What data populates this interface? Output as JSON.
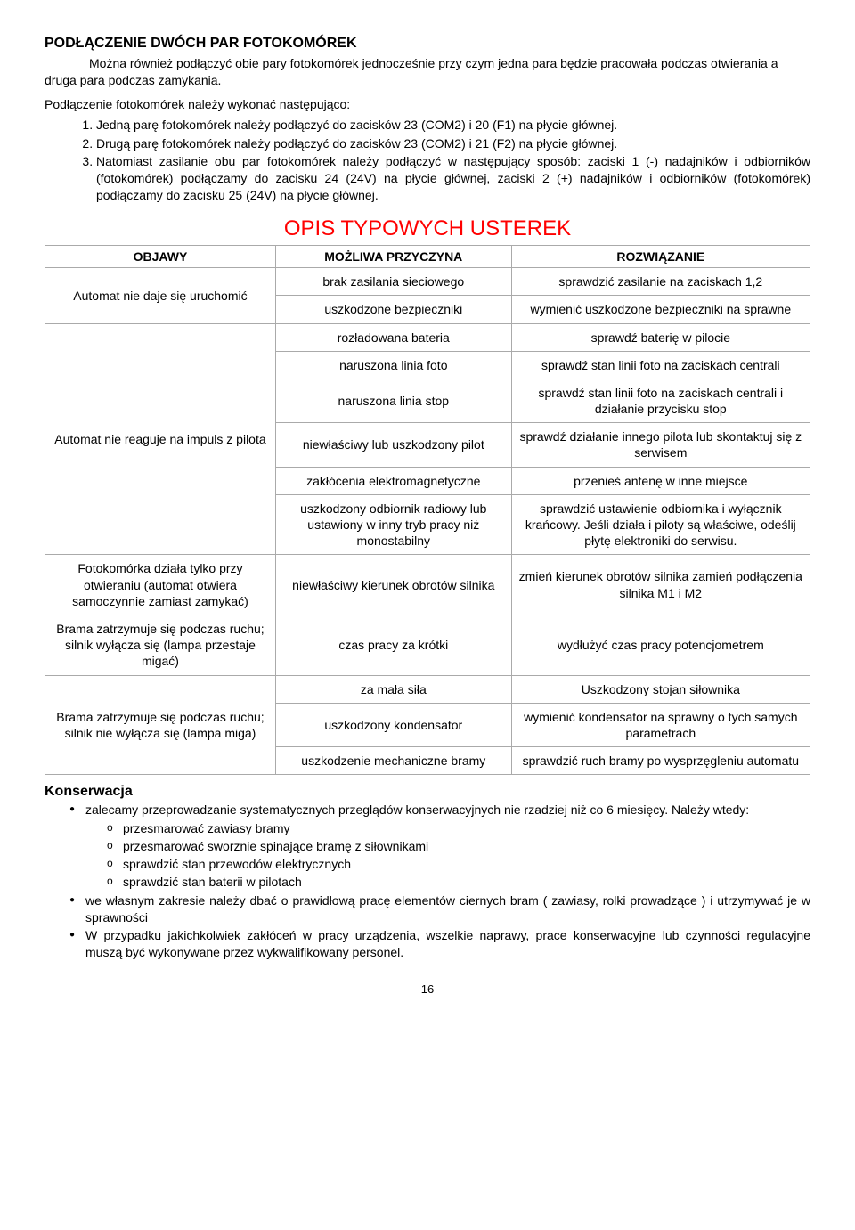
{
  "section1": {
    "heading": "PODŁĄCZENIE DWÓCH PAR FOTOKOMÓREK",
    "intro": "Można również podłączyć obie pary fotokomórek jednocześnie przy czym jedna para będzie pracowała podczas otwierania a druga para podczas zamykania.",
    "sub": "Podłączenie fotokomórek należy wykonać następująco:",
    "items": [
      "Jedną parę fotokomórek należy podłączyć do zacisków 23 (COM2) i 20 (F1) na płycie głównej.",
      "Drugą parę fotokomórek należy podłączyć do zacisków 23 (COM2) i 21 (F2) na płycie głównej.",
      "Natomiast zasilanie obu par fotokomórek należy podłączyć w następujący sposób: zaciski 1 (-) nadajników i odbiorników (fotokomórek) podłączamy do zacisku 24 (24V) na płycie głównej, zaciski 2 (+) nadajników i odbiorników (fotokomórek) podłączamy do zacisku 25 (24V) na płycie głównej."
    ]
  },
  "fault_table": {
    "title": "OPIS TYPOWYCH USTEREK",
    "headers": [
      "OBJAWY",
      "MOŻLIWA PRZYCZYNA",
      "ROZWIĄZANIE"
    ],
    "groups": [
      {
        "symptom": "Automat nie daje się uruchomić",
        "rows": [
          [
            "brak zasilania sieciowego",
            "sprawdzić zasilanie na zaciskach 1,2"
          ],
          [
            "uszkodzone bezpieczniki",
            "wymienić uszkodzone bezpieczniki na sprawne"
          ]
        ]
      },
      {
        "symptom": "Automat nie reaguje na impuls z pilota",
        "rows": [
          [
            "rozładowana bateria",
            "sprawdź baterię w pilocie"
          ],
          [
            "naruszona linia foto",
            "sprawdź stan linii foto na zaciskach centrali"
          ],
          [
            "naruszona linia stop",
            "sprawdź stan linii foto na zaciskach centrali i działanie przycisku stop"
          ],
          [
            "niewłaściwy lub uszkodzony pilot",
            "sprawdź działanie innego pilota lub skontaktuj się z serwisem"
          ],
          [
            "zakłócenia elektromagnetyczne",
            "przenieś antenę w inne miejsce"
          ],
          [
            "uszkodzony odbiornik radiowy lub ustawiony w inny tryb pracy niż monostabilny",
            "sprawdzić ustawienie odbiornika i wyłącznik krańcowy. Jeśli działa i piloty są właściwe, odeślij płytę elektroniki do serwisu."
          ]
        ]
      },
      {
        "symptom": "Fotokomórka działa tylko przy otwieraniu (automat otwiera samoczynnie zamiast zamykać)",
        "rows": [
          [
            "niewłaściwy kierunek obrotów silnika",
            "zmień kierunek obrotów silnika zamień podłączenia silnika M1 i M2"
          ]
        ]
      },
      {
        "symptom": "Brama zatrzymuje się podczas ruchu; silnik wyłącza się (lampa przestaje migać)",
        "rows": [
          [
            "czas pracy za krótki",
            "wydłużyć czas pracy potencjometrem"
          ]
        ]
      },
      {
        "symptom": "Brama zatrzymuje się podczas ruchu; silnik nie wyłącza się (lampa miga)",
        "rows": [
          [
            "za mała siła",
            "Uszkodzony stojan siłownika"
          ],
          [
            "uszkodzony kondensator",
            "wymienić kondensator na sprawny o tych samych parametrach"
          ],
          [
            "uszkodzenie mechaniczne bramy",
            "sprawdzić ruch bramy po wysprzęgleniu automatu"
          ]
        ]
      }
    ]
  },
  "konserwacja": {
    "heading": "Konserwacja",
    "bullets": [
      {
        "text": "zalecamy przeprowadzanie systematycznych przeglądów konserwacyjnych nie rzadziej niż co 6 miesięcy. Należy wtedy:",
        "sub": [
          "przesmarować zawiasy bramy",
          "przesmarować sworznie spinające bramę z siłownikami",
          "sprawdzić stan przewodów elektrycznych",
          "sprawdzić stan baterii w pilotach"
        ]
      },
      {
        "text": "we własnym zakresie należy dbać o prawidłową pracę elementów ciernych bram ( zawiasy, rolki prowadzące ) i utrzymywać je w sprawności"
      },
      {
        "text": "W przypadku jakichkolwiek zakłóceń w pracy urządzenia, wszelkie naprawy, prace konserwacyjne lub czynności regulacyjne muszą być wykonywane przez wykwalifikowany personel."
      }
    ]
  },
  "page_number": "16"
}
